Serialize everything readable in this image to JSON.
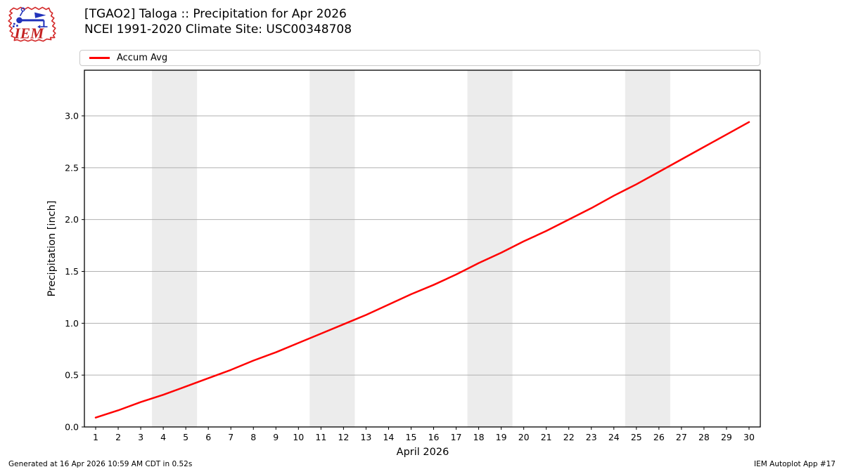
{
  "header": {
    "title_line1": "[TGAO2] Taloga :: Precipitation for Apr 2026",
    "title_line2": "NCEI 1991-2020 Climate Site: USC00348708",
    "logo_text": "IEM"
  },
  "legend": {
    "items": [
      {
        "label": "Accum Avg",
        "color": "#ff0000"
      }
    ]
  },
  "footer": {
    "left": "Generated at 16 Apr 2026 10:59 AM CDT in 0.52s",
    "right": "IEM Autoplot App #17"
  },
  "chart_data": {
    "type": "line",
    "title": "[TGAO2] Taloga :: Precipitation for Apr 2026",
    "subtitle": "NCEI 1991-2020 Climate Site: USC00348708",
    "xlabel": "April 2026",
    "ylabel": "Precipitation [inch]",
    "x": [
      1,
      2,
      3,
      4,
      5,
      6,
      7,
      8,
      9,
      10,
      11,
      12,
      13,
      14,
      15,
      16,
      17,
      18,
      19,
      20,
      21,
      22,
      23,
      24,
      25,
      26,
      27,
      28,
      29,
      30
    ],
    "series": [
      {
        "name": "Accum Avg",
        "color": "#ff0000",
        "values": [
          0.09,
          0.16,
          0.24,
          0.31,
          0.39,
          0.47,
          0.55,
          0.64,
          0.72,
          0.81,
          0.9,
          0.99,
          1.08,
          1.18,
          1.28,
          1.37,
          1.47,
          1.58,
          1.68,
          1.79,
          1.89,
          2.0,
          2.11,
          2.23,
          2.34,
          2.46,
          2.58,
          2.7,
          2.82,
          2.94
        ]
      }
    ],
    "yticks": [
      0.0,
      0.5,
      1.0,
      1.5,
      2.0,
      2.5,
      3.0
    ],
    "ylim": [
      0,
      3.44
    ],
    "xlim": [
      0.5,
      30.5
    ],
    "grid": true,
    "gridline_color": "#b0b0b0",
    "weekend_shading_days": [
      [
        4,
        5
      ],
      [
        11,
        12
      ],
      [
        18,
        19
      ],
      [
        25,
        26
      ]
    ],
    "band_color": "#ececec",
    "legend_position": "top"
  }
}
